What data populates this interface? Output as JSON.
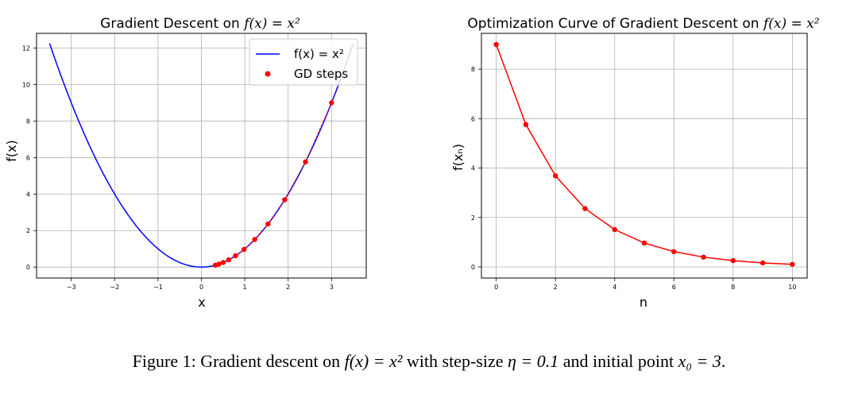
{
  "chart_data": [
    {
      "type": "line",
      "title_text": "Gradient Descent on ",
      "title_math": "f(x) = x²",
      "xlabel": "x",
      "ylabel": "f(x)",
      "xlim": [
        -3.8,
        3.8
      ],
      "ylim": [
        -0.6,
        12.8
      ],
      "xticks": [
        -3,
        -2,
        -1,
        0,
        1,
        2,
        3
      ],
      "xtick_labels": [
        "−3",
        "−2",
        "−1",
        "0",
        "1",
        "2",
        "3"
      ],
      "yticks": [
        0,
        2,
        4,
        6,
        8,
        10,
        12
      ],
      "ytick_labels": [
        "0",
        "2",
        "4",
        "6",
        "8",
        "10",
        "12"
      ],
      "grid": true,
      "legend_position": "top-right",
      "series": [
        {
          "name": "f(x) = x²",
          "kind": "line",
          "color": "#0000ff",
          "x_range": [
            -3.5,
            3.5
          ],
          "function": "x^2"
        },
        {
          "name": "GD steps",
          "kind": "scatter",
          "color": "#ff0000",
          "x": [
            3.0,
            2.4,
            1.92,
            1.536,
            1.229,
            0.983,
            0.786,
            0.629,
            0.503,
            0.403,
            0.322
          ],
          "y": [
            9.0,
            5.76,
            3.686,
            2.359,
            1.51,
            0.966,
            0.618,
            0.396,
            0.253,
            0.162,
            0.104
          ]
        }
      ]
    },
    {
      "type": "line",
      "title_text": "Optimization Curve of Gradient Descent on ",
      "title_math": "f(x) = x²",
      "xlabel": "n",
      "ylabel": "f(xₙ)",
      "xlim": [
        -0.5,
        10.5
      ],
      "ylim": [
        -0.45,
        9.45
      ],
      "xticks": [
        0,
        2,
        4,
        6,
        8,
        10
      ],
      "xtick_labels": [
        "0",
        "2",
        "4",
        "6",
        "8",
        "10"
      ],
      "yticks": [
        0,
        2,
        4,
        6,
        8
      ],
      "ytick_labels": [
        "0",
        "2",
        "4",
        "6",
        "8"
      ],
      "grid": true,
      "series": [
        {
          "name": "f(x_n)",
          "kind": "line+markers",
          "color": "#ff0000",
          "x": [
            0,
            1,
            2,
            3,
            4,
            5,
            6,
            7,
            8,
            9,
            10
          ],
          "y": [
            9.0,
            5.76,
            3.686,
            2.359,
            1.51,
            0.966,
            0.618,
            0.396,
            0.253,
            0.162,
            0.104
          ]
        }
      ]
    }
  ],
  "caption": {
    "prefix": "Figure 1: Gradient descent on ",
    "math1": "f(x) = x²",
    "middle": " with step-size ",
    "math2": "η = 0.1",
    "middle2": " and initial point ",
    "math3": "x₀ = 3",
    "suffix": "."
  }
}
